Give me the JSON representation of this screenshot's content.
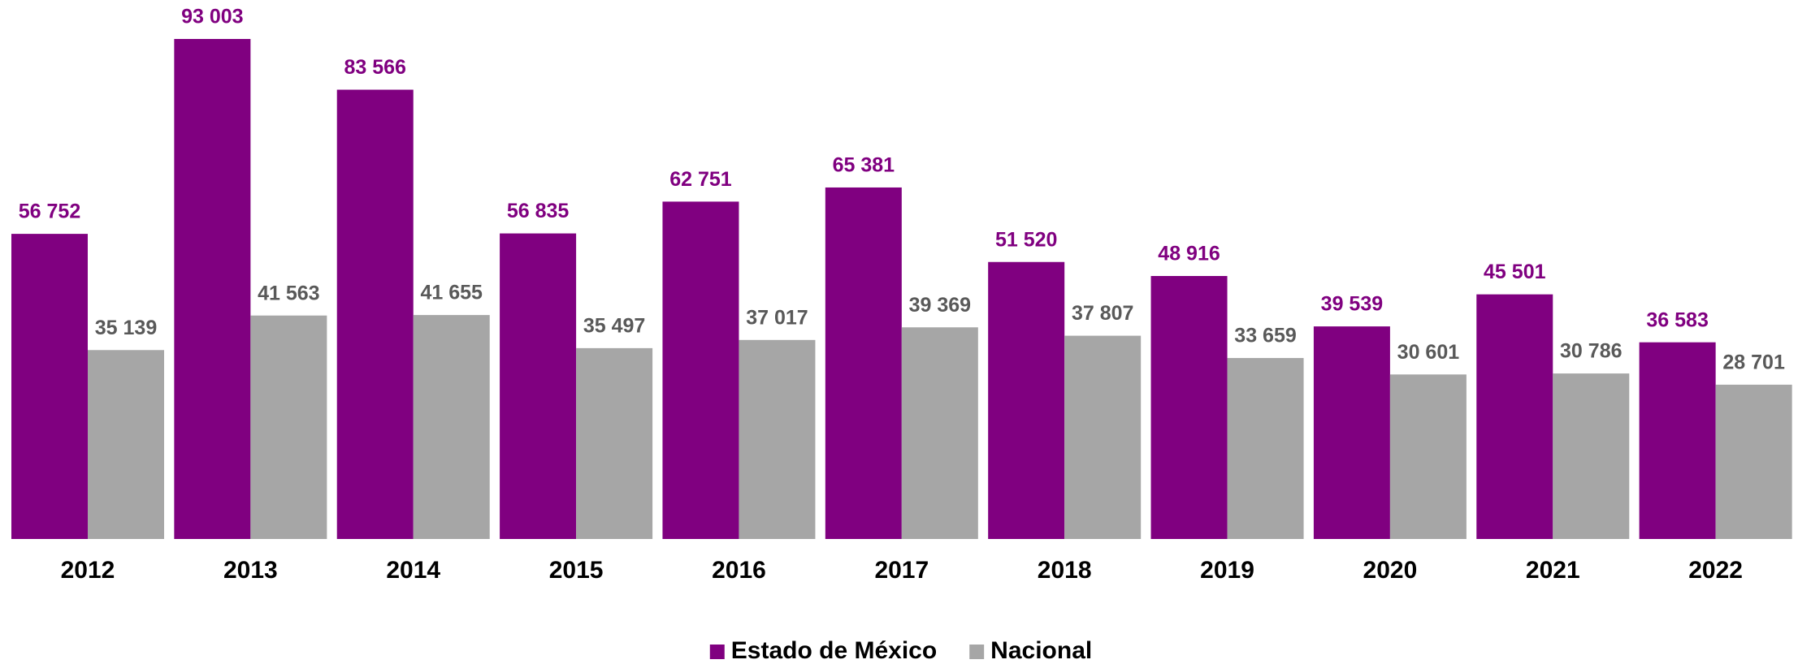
{
  "chart_data": {
    "type": "bar",
    "categories": [
      "2012",
      "2013",
      "2014",
      "2015",
      "2016",
      "2017",
      "2018",
      "2019",
      "2020",
      "2021",
      "2022"
    ],
    "series": [
      {
        "name": "Estado de México",
        "color": "#800080",
        "values": [
          56752,
          93003,
          83566,
          56835,
          62751,
          65381,
          51520,
          48916,
          39539,
          45501,
          36583
        ],
        "value_labels": [
          "56 752",
          "93 003",
          "83 566",
          "56 835",
          "62 751",
          "65 381",
          "51 520",
          "48 916",
          "39 539",
          "45 501",
          "36 583"
        ]
      },
      {
        "name": "Nacional",
        "color": "#a6a6a6",
        "values": [
          35139,
          41563,
          41655,
          35497,
          37017,
          39369,
          37807,
          33659,
          30601,
          30786,
          28701
        ],
        "value_labels": [
          "35 139",
          "41 563",
          "41 655",
          "35 497",
          "37 017",
          "39 369",
          "37 807",
          "33 659",
          "30 601",
          "30 786",
          "28 701"
        ]
      }
    ],
    "legend": "bottom"
  }
}
